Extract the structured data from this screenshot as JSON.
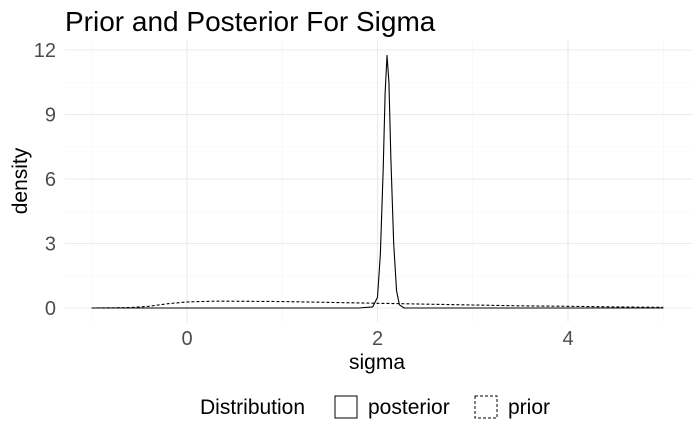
{
  "chart_data": {
    "type": "line",
    "title": "Prior and Posterior For Sigma",
    "xlabel": "sigma",
    "ylabel": "density",
    "xlim": [
      -1.0,
      5.0
    ],
    "ylim": [
      0,
      12
    ],
    "x_ticks": [
      0,
      2,
      4
    ],
    "y_ticks": [
      0,
      3,
      6,
      9,
      12
    ],
    "x_tick_labels": [
      "0",
      "2",
      "4"
    ],
    "y_tick_labels": [
      "0",
      "3",
      "6",
      "9",
      "12"
    ],
    "grid": true,
    "legend": {
      "title": "Distribution",
      "position": "bottom",
      "entries": [
        "posterior",
        "prior"
      ]
    },
    "series": [
      {
        "name": "posterior",
        "line_style": "solid",
        "x": [
          -1.0,
          1.8,
          1.95,
          2.0,
          2.03,
          2.06,
          2.08,
          2.1,
          2.12,
          2.14,
          2.17,
          2.2,
          2.23,
          2.28,
          5.0
        ],
        "y": [
          0,
          0,
          0.05,
          0.5,
          2.5,
          6.5,
          10.0,
          11.75,
          10.5,
          7.0,
          3.0,
          0.8,
          0.15,
          0,
          0
        ]
      },
      {
        "name": "prior",
        "line_style": "dashed",
        "x": [
          -1.0,
          -0.6,
          -0.4,
          -0.2,
          0.0,
          0.3,
          1.0,
          1.5,
          2.0,
          2.5,
          3.0,
          3.5,
          4.0,
          4.5,
          5.0
        ],
        "y": [
          0.0,
          0.02,
          0.08,
          0.2,
          0.28,
          0.32,
          0.3,
          0.26,
          0.22,
          0.18,
          0.14,
          0.1,
          0.08,
          0.05,
          0.03
        ]
      }
    ]
  }
}
